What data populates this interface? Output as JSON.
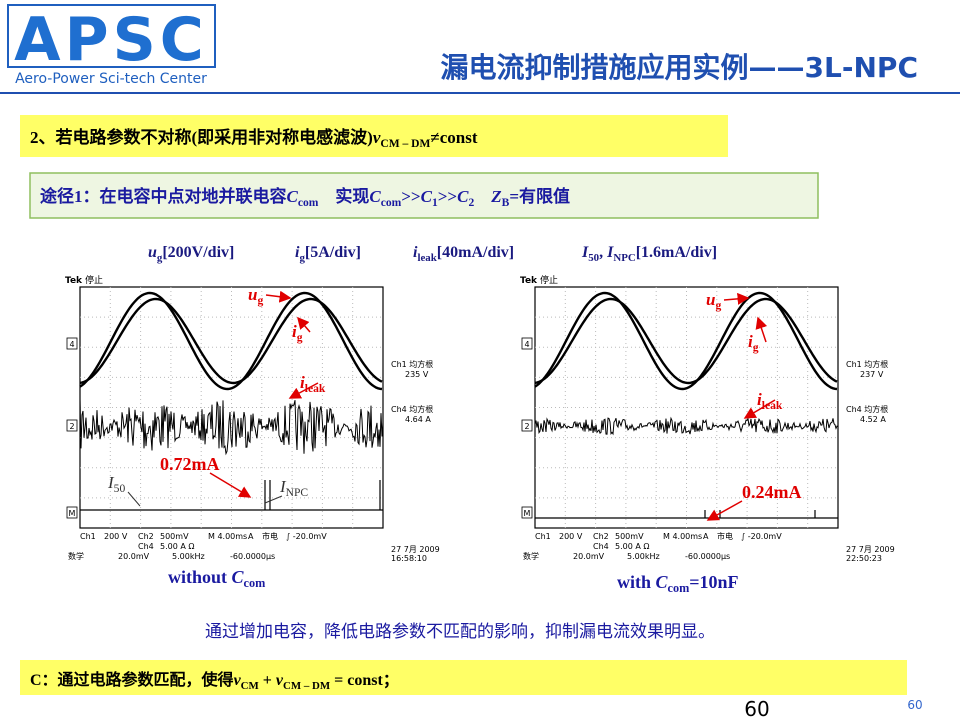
{
  "logo": {
    "name": "APSC",
    "subtitle": "Aero-Power Sci-tech Center"
  },
  "title": "漏电流抑制措施应用实例——3L-NPC",
  "point": [
    "2、若电路参数不对称(即采用非对称电感滤波)",
    "v",
    "CM – DM",
    "≠const"
  ],
  "route": [
    "途径1：在电容中点对地并联电容",
    "C",
    "com",
    "　实现",
    "C",
    "com",
    ">>",
    "C",
    "1",
    ">>",
    "C",
    "2",
    "　Z",
    "B",
    "=有限值"
  ],
  "scales": [
    [
      "u",
      "g",
      "[200V/div]"
    ],
    [
      "i",
      "g",
      "[5A/div]"
    ],
    [
      "i",
      "leak",
      "[40mA/div]"
    ],
    [
      "I",
      "50",
      ", ",
      "I",
      "NPC",
      "[1.6mA/div]"
    ]
  ],
  "scopes": [
    {
      "brand": "Tek",
      "state": "停止",
      "channels": [
        "4",
        "2",
        "M"
      ],
      "readouts": [
        [
          "Ch1 均方根",
          "235 V"
        ],
        [
          "Ch4 均方根",
          "4.64 A"
        ]
      ],
      "settings": [
        [
          "Ch1",
          "200 V",
          "Ch2",
          "500mV",
          "M 4.00ms",
          "A",
          "市电",
          "∫ -20.0mV"
        ],
        [
          "Ch4",
          "5.00 A Ω"
        ],
        [
          "数学",
          "20.0mV",
          "5.00kHz",
          "-60.0000µs"
        ]
      ],
      "date": [
        "27 7月 2009",
        "16:58:10"
      ],
      "labels": {
        "ug": [
          "u",
          "g"
        ],
        "ig": [
          "i",
          "g"
        ],
        "ileak": [
          "i",
          "leak"
        ],
        "current": "0.72mA",
        "i50": [
          "I",
          "50"
        ],
        "inpc": [
          "I",
          "NPC"
        ]
      },
      "caption": [
        "without ",
        "C",
        "com"
      ]
    },
    {
      "brand": "Tek",
      "state": "停止",
      "channels": [
        "4",
        "2",
        "M"
      ],
      "readouts": [
        [
          "Ch1 均方根",
          "237 V"
        ],
        [
          "Ch4 均方根",
          "4.52 A"
        ]
      ],
      "settings": [
        [
          "Ch1",
          "200 V",
          "Ch2",
          "500mV",
          "M 4.00ms",
          "A",
          "市电",
          "∫ -20.0mV"
        ],
        [
          "Ch4",
          "5.00 A Ω"
        ],
        [
          "数学",
          "20.0mV",
          "5.00kHz",
          "-60.0000µs"
        ]
      ],
      "date": [
        "27 7月 2009",
        "22:50:23"
      ],
      "labels": {
        "ug": [
          "u",
          "g"
        ],
        "ig": [
          "i",
          "g"
        ],
        "ileak": [
          "i",
          "leak"
        ],
        "current": "0.24mA"
      },
      "caption": [
        "with ",
        "C",
        "com",
        "=10nF"
      ]
    }
  ],
  "conclusion": "通过增加电容，降低电路参数不匹配的影响，抑制漏电流效果明显。",
  "note": [
    "C：通过电路参数匹配，使得",
    "v",
    "CM",
    " + ",
    "v",
    "CM – DM",
    " = const；"
  ],
  "page_number": "60",
  "slide_number": "60"
}
